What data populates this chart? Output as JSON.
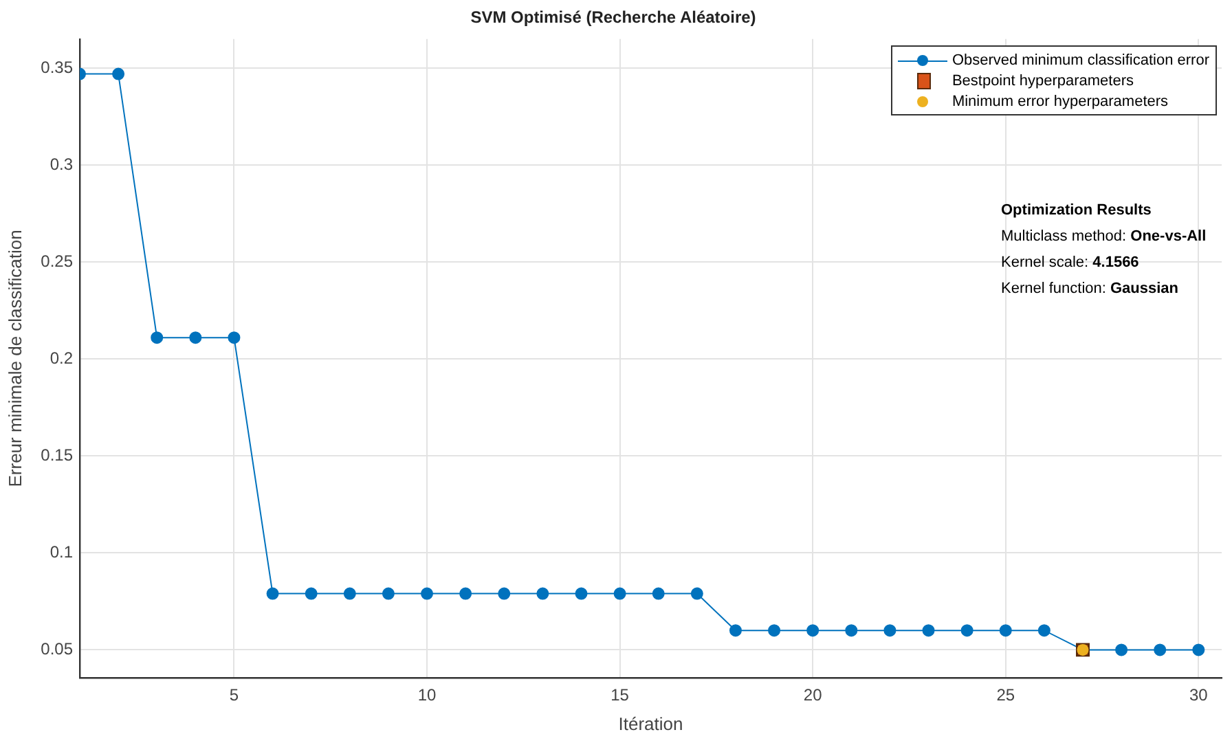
{
  "chart_data": {
    "type": "line",
    "title": "SVM Optimisé (Recherche Aléatoire)",
    "xlabel": "Itération",
    "ylabel": "Erreur minimale de classification",
    "x": [
      1,
      2,
      3,
      4,
      5,
      6,
      7,
      8,
      9,
      10,
      11,
      12,
      13,
      14,
      15,
      16,
      17,
      18,
      19,
      20,
      21,
      22,
      23,
      24,
      25,
      26,
      27,
      28,
      29,
      30
    ],
    "series": [
      {
        "name": "Observed minimum classification error",
        "color": "#0072bd",
        "marker": "circle",
        "values": [
          0.347,
          0.347,
          0.211,
          0.211,
          0.211,
          0.079,
          0.079,
          0.079,
          0.079,
          0.079,
          0.079,
          0.079,
          0.079,
          0.079,
          0.079,
          0.079,
          0.079,
          0.06,
          0.06,
          0.06,
          0.06,
          0.06,
          0.06,
          0.06,
          0.06,
          0.06,
          0.05,
          0.05,
          0.05,
          0.05
        ]
      },
      {
        "name": "Bestpoint hyperparameters",
        "type": "scatter",
        "color": "#d95319",
        "marker": "square",
        "x": [
          27
        ],
        "values": [
          0.05
        ]
      },
      {
        "name": "Minimum error hyperparameters",
        "type": "scatter",
        "color": "#edb120",
        "marker": "circle",
        "x": [
          27
        ],
        "values": [
          0.05
        ]
      }
    ],
    "xlim": [
      1,
      30.6
    ],
    "xticks": [
      5,
      10,
      15,
      20,
      25,
      30
    ],
    "ylim": [
      0.0356,
      0.365
    ],
    "yticks": [
      0.05,
      {
        "value": 0.1,
        "label": "0.1"
      },
      0.15,
      {
        "value": 0.2,
        "label": "0.2"
      },
      0.25,
      {
        "value": 0.3,
        "label": "0.3"
      },
      0.35
    ],
    "grid": true,
    "legend": "top right",
    "annotations": [
      "Optimization Results",
      "Multiclass method: One-vs-All",
      "Kernel scale: 4.1566",
      "Kernel function: Gaussian"
    ]
  }
}
